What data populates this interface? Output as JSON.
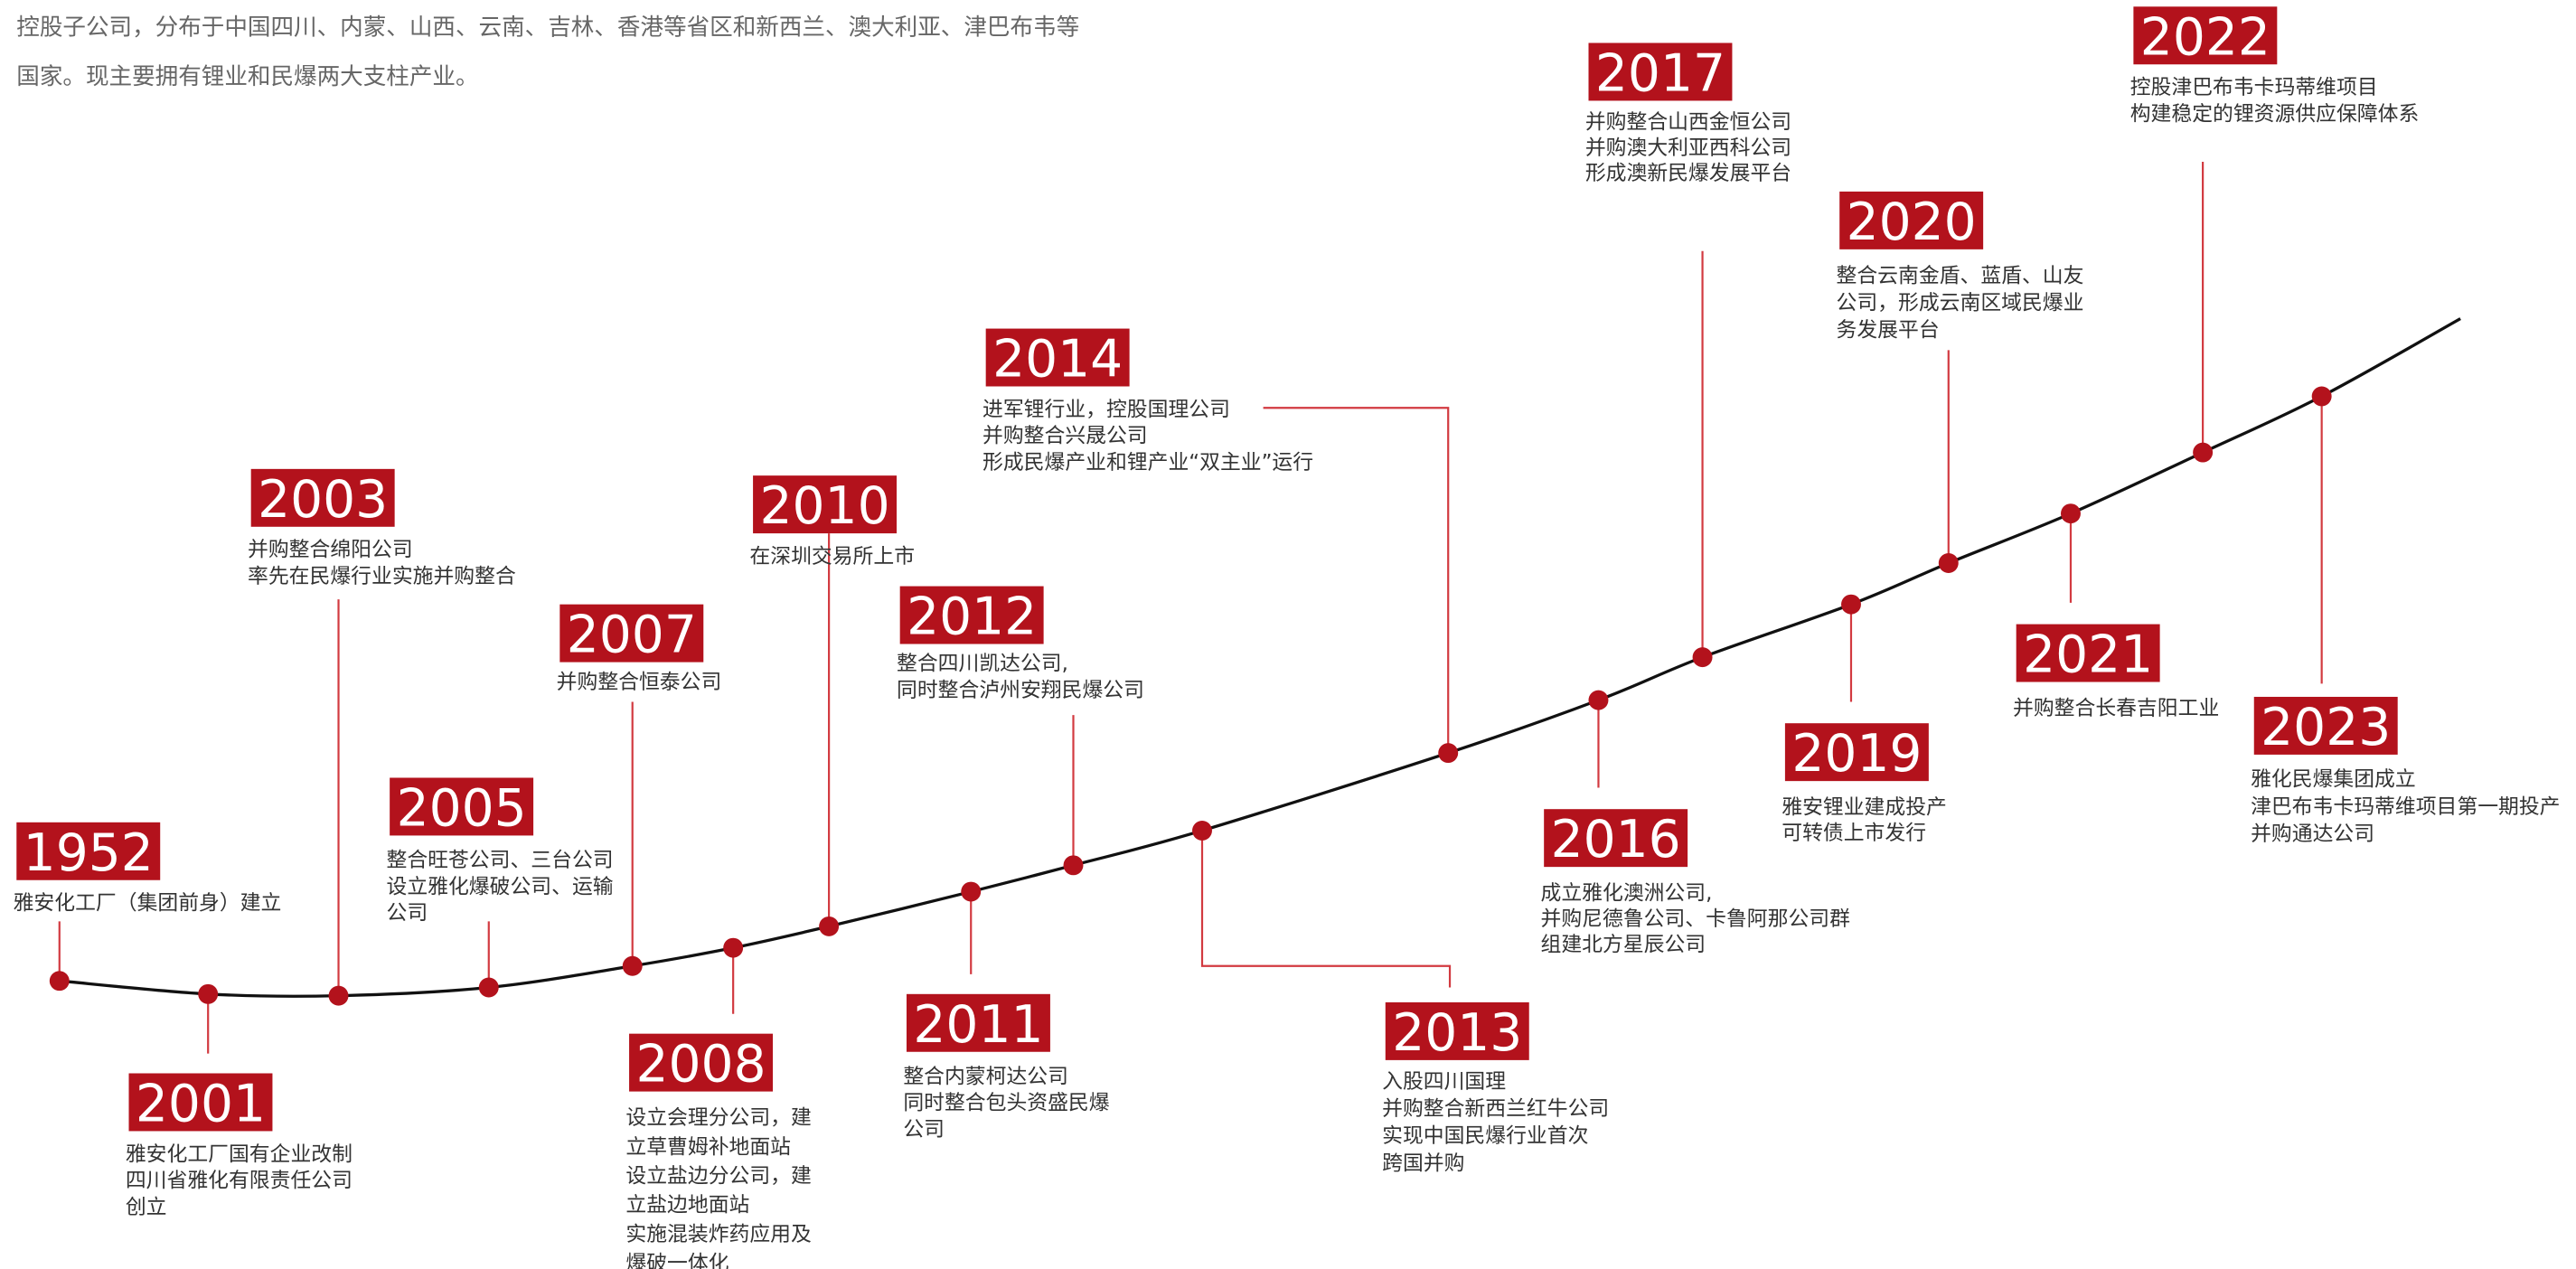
{
  "intro": [
    "控股子公司，分布于中国四川、内蒙、山西、云南、吉林、香港等省区和新西兰、澳大利亚、津巴布韦等",
    "国家。现主要拥有锂业和民爆两大支柱产业。"
  ],
  "events": [
    {
      "year": "1952",
      "lines": [
        "雅安化工厂（集团前身）建立"
      ]
    },
    {
      "year": "2001",
      "lines": [
        "雅安化工厂国有企业改制",
        "四川省雅化有限责任公司",
        "创立"
      ]
    },
    {
      "year": "2003",
      "lines": [
        "并购整合绵阳公司",
        "率先在民爆行业实施并购整合"
      ]
    },
    {
      "year": "2005",
      "lines": [
        "整合旺苍公司、三台公司",
        "设立雅化爆破公司、运输",
        "公司"
      ]
    },
    {
      "year": "2007",
      "lines": [
        "并购整合恒泰公司"
      ]
    },
    {
      "year": "2008",
      "lines": [
        "设立会理分公司，建",
        "立草曹姆补地面站",
        "设立盐边分公司，建",
        "立盐边地面站",
        "实施混装炸药应用及",
        "爆破一体化"
      ]
    },
    {
      "year": "2010",
      "lines": [
        "在深圳交易所上市"
      ]
    },
    {
      "year": "2011",
      "lines": [
        "整合内蒙柯达公司",
        "同时整合包头资盛民爆",
        "公司"
      ]
    },
    {
      "year": "2012",
      "lines": [
        "整合四川凯达公司,",
        "同时整合泸州安翔民爆公司"
      ]
    },
    {
      "year": "2013",
      "lines": [
        "入股四川国理",
        "并购整合新西兰红牛公司",
        "实现中国民爆行业首次",
        "跨国并购"
      ]
    },
    {
      "year": "2014",
      "lines": [
        "进军锂行业，控股国理公司",
        "并购整合兴晟公司",
        "形成民爆产业和锂产业“双主业”运行"
      ]
    },
    {
      "year": "2016",
      "lines": [
        "成立雅化澳洲公司,",
        "并购尼德鲁公司、卡鲁阿那公司群",
        "组建北方星辰公司"
      ]
    },
    {
      "year": "2017",
      "lines": [
        "并购整合山西金恒公司",
        "并购澳大利亚西科公司",
        "形成澳新民爆发展平台"
      ]
    },
    {
      "year": "2019",
      "lines": [
        "雅安锂业建成投产",
        "可转债上市发行"
      ]
    },
    {
      "year": "2020",
      "lines": [
        "整合云南金盾、蓝盾、山友",
        "公司，形成云南区域民爆业",
        "务发展平台"
      ]
    },
    {
      "year": "2021",
      "lines": [
        "并购整合长春吉阳工业"
      ]
    },
    {
      "year": "2022",
      "lines": [
        "控股津巴布韦卡玛蒂维项目",
        "构建稳定的锂资源供应保障体系"
      ]
    },
    {
      "year": "2023",
      "lines": [
        "雅化民爆集团成立",
        "津巴布韦卡玛蒂维项目第一期投产",
        "并购通达公司"
      ]
    }
  ]
}
